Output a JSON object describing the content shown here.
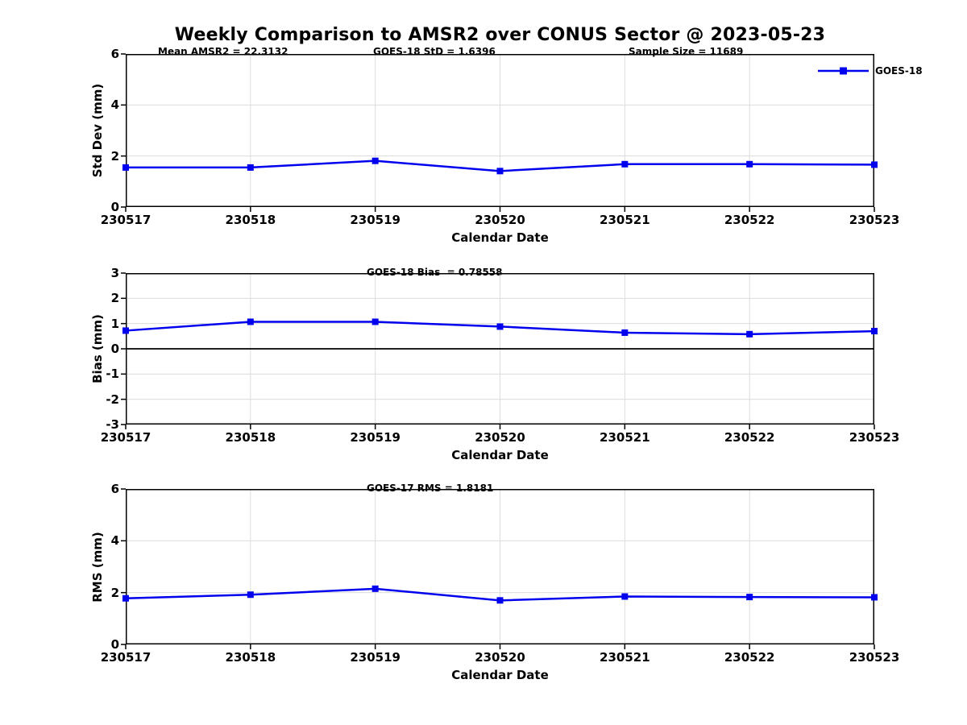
{
  "title": "Weekly Comparison to AMSR2 over CONUS Sector @ 2023-05-23",
  "legend": {
    "label": "GOES-18"
  },
  "colors": {
    "line": "#0000ee",
    "grid": "#dcdcdc",
    "axis": "#000000"
  },
  "chart_data": [
    {
      "type": "line",
      "series_name": "GOES-18",
      "ylabel": "Std Dev (mm)",
      "xlabel": "Calendar Date",
      "ylim": [
        0,
        6
      ],
      "yticks": [
        0,
        2,
        4,
        6
      ],
      "grid": true,
      "legend_position": "top-right",
      "categories": [
        "230517",
        "230518",
        "230519",
        "230520",
        "230521",
        "230522",
        "230523"
      ],
      "values": [
        1.55,
        1.55,
        1.81,
        1.41,
        1.68,
        1.68,
        1.66
      ],
      "annotations": [
        {
          "text": "Mean AMSR2 = 22.3132"
        },
        {
          "text": "GOES-18 StD = 1.6396"
        },
        {
          "text": "Sample Size = 11689"
        }
      ]
    },
    {
      "type": "line",
      "series_name": "GOES-18",
      "ylabel": "Bias (mm)",
      "xlabel": "Calendar Date",
      "ylim": [
        -3,
        3
      ],
      "yticks": [
        -3,
        -2,
        -1,
        0,
        1,
        2,
        3
      ],
      "zero_line": true,
      "grid": true,
      "categories": [
        "230517",
        "230518",
        "230519",
        "230520",
        "230521",
        "230522",
        "230523"
      ],
      "values": [
        0.72,
        1.07,
        1.07,
        0.88,
        0.64,
        0.58,
        0.7
      ],
      "annotations": [
        {
          "text": "GOES-18 Bias  = 0.78558"
        }
      ]
    },
    {
      "type": "line",
      "series_name": "GOES-18",
      "ylabel": "RMS (mm)",
      "xlabel": "Calendar Date",
      "ylim": [
        0,
        6
      ],
      "yticks": [
        0,
        2,
        4,
        6
      ],
      "grid": true,
      "categories": [
        "230517",
        "230518",
        "230519",
        "230520",
        "230521",
        "230522",
        "230523"
      ],
      "values": [
        1.78,
        1.92,
        2.15,
        1.7,
        1.85,
        1.83,
        1.82
      ],
      "annotations": [
        {
          "text": "GOES-17 RMS = 1.8181"
        }
      ]
    }
  ]
}
